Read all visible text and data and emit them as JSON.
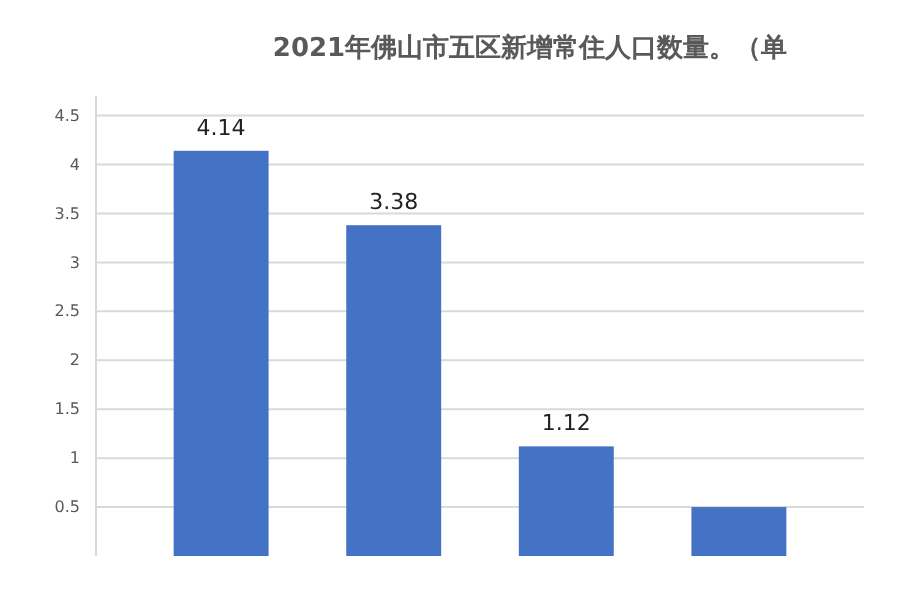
{
  "chart_data": {
    "type": "bar",
    "title": "2021年佛山市五区新增常住人口数量。（单",
    "categories": [
      null,
      null,
      null,
      null
    ],
    "values": [
      4.14,
      3.38,
      1.12,
      0.5
    ],
    "value_labels": [
      "4.14",
      "3.38",
      "1.12",
      null
    ],
    "color": "#4472c4",
    "ylim": [
      0,
      4.7
    ],
    "yticks": [
      0.5,
      1,
      1.5,
      2,
      2.5,
      3,
      3.5,
      4,
      4.5
    ],
    "grid": "y"
  }
}
